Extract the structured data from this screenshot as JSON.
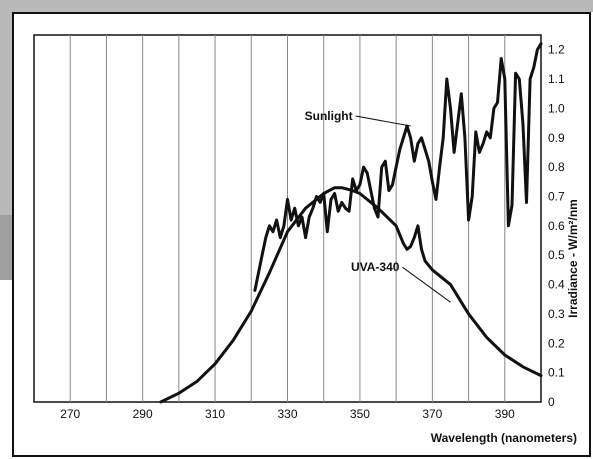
{
  "chart_data": {
    "type": "line",
    "title": "",
    "xlabel": "Wavelength (nanometers)",
    "ylabel": "Irradiance - W/m²/nm",
    "xlim": [
      260,
      400
    ],
    "ylim": [
      0,
      1.25
    ],
    "x_ticks": [
      "270",
      "290",
      "310",
      "330",
      "350",
      "370",
      "390"
    ],
    "y_ticks": [
      "0",
      "0.1",
      "0.2",
      "0.3",
      "0.4",
      "0.5",
      "0.6",
      "0.7",
      "0.8",
      "0.9",
      "1.0",
      "1.1",
      "1.2"
    ],
    "grid": "vertical",
    "series": [
      {
        "name": "Sunlight",
        "x": [
          321,
          322,
          323,
          324,
          325,
          326,
          327,
          328,
          329,
          330,
          331,
          332,
          333,
          334,
          335,
          336,
          337,
          338,
          339,
          340,
          341,
          342,
          343,
          344,
          345,
          346,
          347,
          348,
          349,
          350,
          351,
          352,
          353,
          354,
          355,
          356,
          357,
          358,
          359,
          360,
          361,
          362,
          363,
          364,
          365,
          366,
          367,
          368,
          369,
          370,
          371,
          372,
          373,
          374,
          375,
          376,
          377,
          378,
          379,
          380,
          381,
          382,
          383,
          384,
          385,
          386,
          387,
          388,
          389,
          390,
          391,
          392,
          393,
          394,
          395,
          396,
          397,
          398,
          399,
          400
        ],
        "values": [
          0.38,
          0.44,
          0.5,
          0.56,
          0.6,
          0.58,
          0.62,
          0.56,
          0.6,
          0.69,
          0.62,
          0.66,
          0.6,
          0.63,
          0.56,
          0.63,
          0.66,
          0.7,
          0.68,
          0.71,
          0.58,
          0.69,
          0.71,
          0.65,
          0.68,
          0.66,
          0.65,
          0.76,
          0.72,
          0.74,
          0.8,
          0.78,
          0.72,
          0.66,
          0.63,
          0.8,
          0.82,
          0.72,
          0.74,
          0.8,
          0.86,
          0.9,
          0.94,
          0.9,
          0.82,
          0.88,
          0.9,
          0.86,
          0.82,
          0.75,
          0.69,
          0.8,
          0.9,
          1.1,
          1.0,
          0.85,
          0.95,
          1.05,
          0.9,
          0.62,
          0.7,
          0.92,
          0.85,
          0.88,
          0.92,
          0.9,
          1.0,
          1.02,
          1.17,
          1.1,
          0.6,
          0.67,
          1.12,
          1.1,
          0.95,
          0.68,
          1.1,
          1.14,
          1.2,
          1.22
        ],
        "color": "#111111"
      },
      {
        "name": "UVA-340",
        "x": [
          295,
          300,
          305,
          310,
          315,
          320,
          325,
          330,
          335,
          340,
          343,
          345,
          348,
          350,
          355,
          360,
          362,
          363,
          364,
          365,
          366,
          367,
          368,
          370,
          375,
          380,
          385,
          390,
          395,
          400
        ],
        "values": [
          0.0,
          0.03,
          0.07,
          0.13,
          0.21,
          0.31,
          0.44,
          0.58,
          0.66,
          0.71,
          0.73,
          0.73,
          0.72,
          0.71,
          0.66,
          0.6,
          0.54,
          0.52,
          0.53,
          0.56,
          0.6,
          0.52,
          0.48,
          0.45,
          0.4,
          0.3,
          0.22,
          0.16,
          0.12,
          0.09
        ],
        "color": "#111111"
      }
    ],
    "annotations": [
      {
        "label": "Sunlight",
        "series": "Sunlight",
        "x": 364,
        "y": 0.94
      },
      {
        "label": "UVA-340",
        "series": "UVA-340",
        "x": 375,
        "y": 0.34
      }
    ]
  }
}
